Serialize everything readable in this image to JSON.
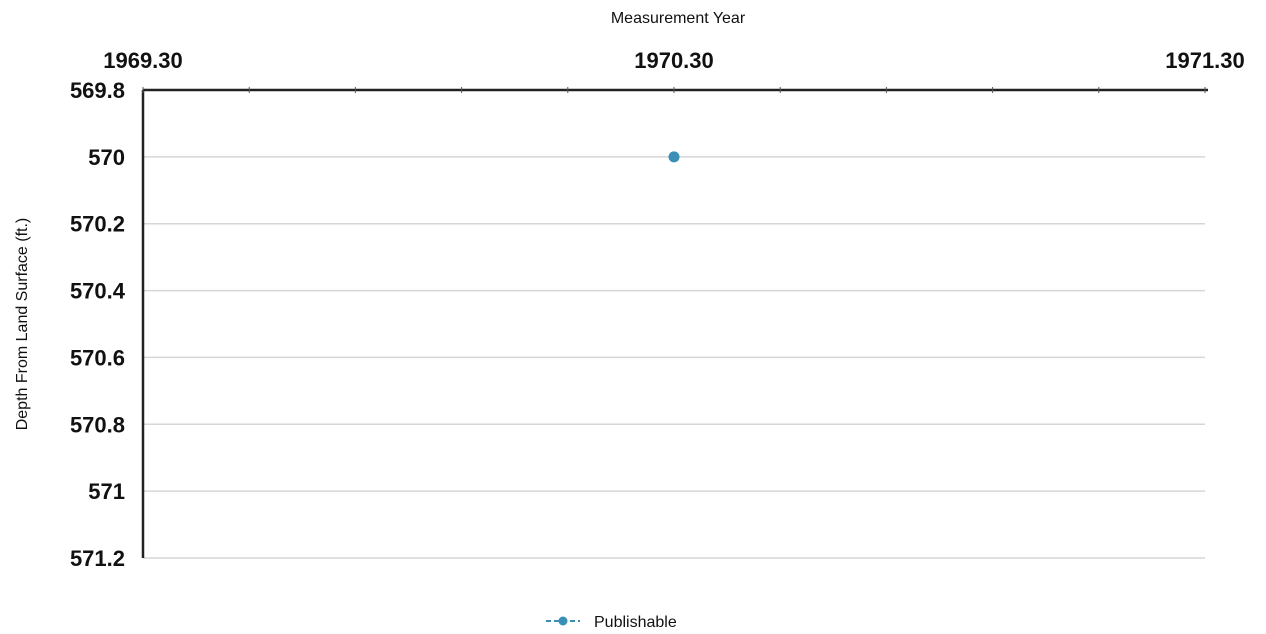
{
  "chart_data": {
    "type": "scatter",
    "xlabel": "Measurement Year",
    "ylabel": "Depth From Land Surface (ft.)",
    "xlim": [
      1969.3,
      1971.3
    ],
    "ylim": [
      569.8,
      571.2
    ],
    "y_inverted": true,
    "x_ticks": [
      "1969.30",
      "1970.30",
      "1971.30"
    ],
    "x_tick_values": [
      1969.3,
      1970.3,
      1971.3
    ],
    "y_ticks": [
      "569.8",
      "570",
      "570.2",
      "570.4",
      "570.6",
      "570.8",
      "571",
      "571.2"
    ],
    "y_tick_values": [
      569.8,
      570.0,
      570.2,
      570.4,
      570.6,
      570.8,
      571.0,
      571.2
    ],
    "grid": true,
    "legend_position": "bottom-center",
    "series": [
      {
        "name": "Publishable",
        "color": "#3a8fb7",
        "points": [
          {
            "x": 1970.3,
            "y": 570.0
          }
        ]
      }
    ]
  }
}
